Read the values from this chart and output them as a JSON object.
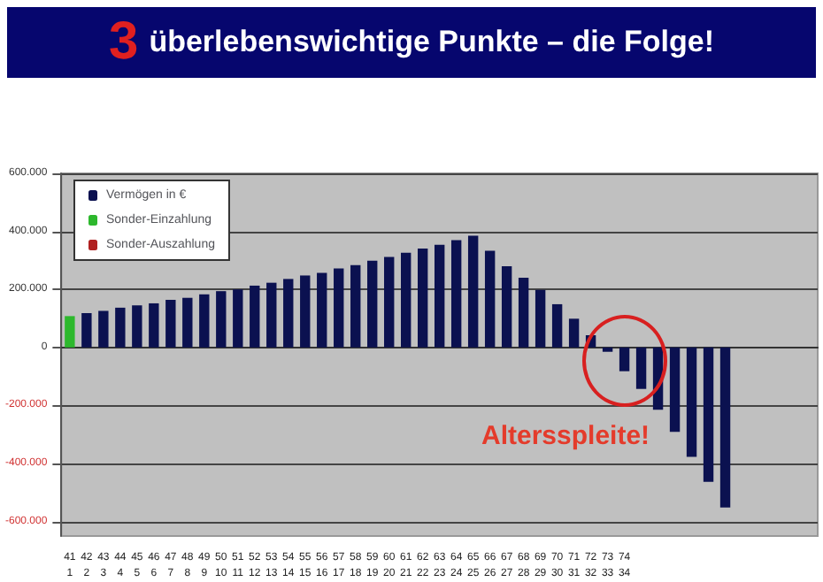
{
  "chart_data": {
    "type": "bar",
    "title": "3 überlebenswichtige Punkte – die Folge!",
    "categories": [
      "41\n1",
      "42\n2",
      "43\n3",
      "44\n4",
      "45\n5",
      "46\n6",
      "47\n7",
      "48\n8",
      "49\n9",
      "50\n10",
      "51\n11",
      "52\n12",
      "53\n13",
      "54\n14",
      "55\n15",
      "56\n16",
      "57\n17",
      "58\n18",
      "59\n19",
      "60\n20",
      "61\n21",
      "62\n22",
      "63\n23",
      "64\n24",
      "65\n25",
      "66\n26",
      "67\n27",
      "68\n28",
      "69\n29",
      "70\n30",
      "71\n31",
      "72\n32",
      "73\n33",
      "74\n34",
      null,
      null,
      null,
      null,
      null,
      null,
      null,
      null,
      null,
      null,
      null
    ],
    "stacked": true,
    "series": [
      {
        "name": "Vermögen in €",
        "color": "#0b1150",
        "values": [
          null,
          118000,
          126000,
          137000,
          145000,
          152000,
          164000,
          171000,
          183000,
          194000,
          200000,
          213000,
          223000,
          236000,
          248000,
          257000,
          272000,
          284000,
          299000,
          312000,
          326000,
          341000,
          354000,
          370000,
          385000,
          333000,
          280000,
          240000,
          198000,
          149000,
          99000,
          42000,
          -15000,
          -82000,
          -143000,
          -215000,
          -291000,
          -377000,
          -463000,
          -552000,
          null,
          null,
          null,
          null,
          null
        ]
      },
      {
        "name": "Sonder-Einzahlung",
        "color": "#2db82d",
        "values": [
          108000,
          null,
          null,
          null,
          null,
          null,
          null,
          null,
          null,
          null,
          null,
          null,
          null,
          null,
          null,
          null,
          null,
          null,
          null,
          null,
          null,
          null,
          null,
          null,
          null,
          null,
          null,
          null,
          null,
          null,
          null,
          null,
          null,
          null,
          null,
          null,
          null,
          null,
          null,
          null,
          null,
          null,
          null,
          null,
          null
        ]
      },
      {
        "name": "Sonder-Auszahlung",
        "color": "#b02020",
        "values": [
          null,
          null,
          null,
          null,
          null,
          null,
          null,
          null,
          null,
          null,
          null,
          null,
          null,
          null,
          null,
          null,
          null,
          null,
          null,
          null,
          null,
          null,
          null,
          null,
          null,
          null,
          null,
          null,
          null,
          null,
          null,
          null,
          null,
          null,
          null,
          null,
          null,
          null,
          null,
          null,
          null,
          null,
          null,
          null,
          null
        ]
      }
    ],
    "ylim": [
      -650000,
      600000
    ],
    "yticks": [
      {
        "value": -600000,
        "label": "-600.000"
      },
      {
        "value": -400000,
        "label": "-400.000"
      },
      {
        "value": -200000,
        "label": "-200.000"
      },
      {
        "value": 0,
        "label": "0"
      },
      {
        "value": 200000,
        "label": "200.000"
      },
      {
        "value": 400000,
        "label": "400.000"
      },
      {
        "value": 600000,
        "label": "600.000"
      }
    ],
    "grid": "y",
    "legend": "top left",
    "annotations": [
      "Altersspleite!"
    ]
  }
}
